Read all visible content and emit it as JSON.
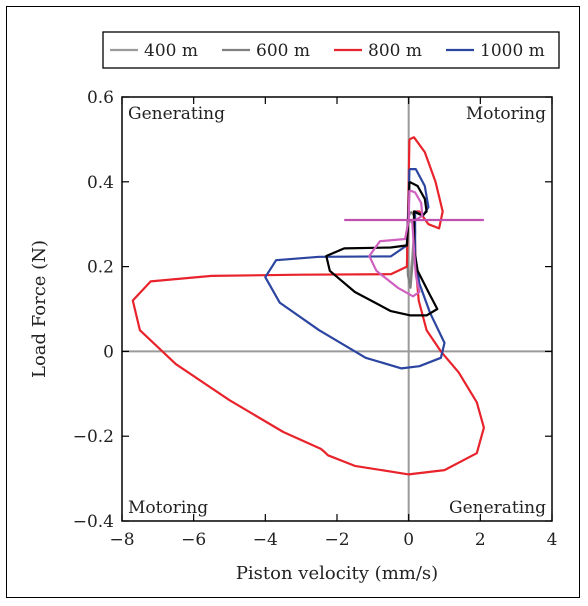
{
  "chart_data": {
    "type": "line",
    "xlabel": "Piston velocity (mm/s)",
    "ylabel": "Load Force (N)",
    "xlim": [
      -8,
      4
    ],
    "ylim": [
      -0.4,
      0.6
    ],
    "x_ticks": [
      -8,
      -6,
      -4,
      -2,
      0,
      2,
      4
    ],
    "y_ticks": [
      -0.4,
      -0.2,
      0,
      0.2,
      0.4,
      0.6
    ],
    "x_tick_labels": [
      "−8",
      "−6",
      "−4",
      "−2",
      "0",
      "2",
      "4"
    ],
    "y_tick_labels": [
      "−0.4",
      "−0.2",
      "0",
      "0.2",
      "0.4",
      "0.6"
    ],
    "grid": false,
    "legend_position": "top",
    "quadrant_labels": {
      "top_left": "Generating",
      "top_right": "Motoring",
      "bottom_left": "Motoring",
      "bottom_right": "Generating"
    },
    "series": [
      {
        "name": "400 m",
        "color": "#9a9a9a",
        "points": [
          [
            0.05,
            0.31
          ],
          [
            0.12,
            0.3
          ],
          [
            0.14,
            0.27
          ],
          [
            0.1,
            0.22
          ],
          [
            0.04,
            0.17
          ],
          [
            -0.02,
            0.2
          ],
          [
            -0.04,
            0.26
          ],
          [
            -0.02,
            0.3
          ],
          [
            0.05,
            0.31
          ]
        ]
      },
      {
        "name": "600 m",
        "color": "#808080",
        "points": [
          [
            0.05,
            0.33
          ],
          [
            0.16,
            0.32
          ],
          [
            0.18,
            0.28
          ],
          [
            0.12,
            0.22
          ],
          [
            0.05,
            0.15
          ],
          [
            -0.02,
            0.18
          ],
          [
            -0.05,
            0.25
          ],
          [
            -0.03,
            0.31
          ],
          [
            0.05,
            0.33
          ]
        ]
      },
      {
        "name": "800 m",
        "color": "#e8232b",
        "points": [
          [
            0.02,
            0.5
          ],
          [
            0.15,
            0.505
          ],
          [
            0.45,
            0.47
          ],
          [
            0.75,
            0.4
          ],
          [
            0.95,
            0.33
          ],
          [
            0.85,
            0.29
          ],
          [
            0.55,
            0.3
          ],
          [
            0.3,
            0.33
          ],
          [
            0.15,
            0.33
          ],
          [
            0.2,
            0.2
          ],
          [
            0.28,
            0.12
          ],
          [
            0.5,
            0.05
          ],
          [
            0.9,
            0.0
          ],
          [
            1.4,
            -0.05
          ],
          [
            1.9,
            -0.12
          ],
          [
            2.1,
            -0.18
          ],
          [
            1.9,
            -0.24
          ],
          [
            1.0,
            -0.28
          ],
          [
            0.0,
            -0.29
          ],
          [
            -1.5,
            -0.27
          ],
          [
            -2.25,
            -0.245
          ],
          [
            -2.35,
            -0.237
          ],
          [
            -2.45,
            -0.23
          ],
          [
            -3.5,
            -0.19
          ],
          [
            -5.0,
            -0.115
          ],
          [
            -6.5,
            -0.03
          ],
          [
            -7.5,
            0.05
          ],
          [
            -7.7,
            0.12
          ],
          [
            -7.2,
            0.165
          ],
          [
            -5.5,
            0.178
          ],
          [
            -3.0,
            0.181
          ],
          [
            -0.5,
            0.182
          ],
          [
            -0.05,
            0.2
          ],
          [
            0.0,
            0.4
          ],
          [
            0.02,
            0.5
          ]
        ]
      },
      {
        "name": "1000 m",
        "color": "#2b45a0",
        "points": [
          [
            0.02,
            0.43
          ],
          [
            0.2,
            0.43
          ],
          [
            0.45,
            0.39
          ],
          [
            0.55,
            0.34
          ],
          [
            0.4,
            0.32
          ],
          [
            0.18,
            0.33
          ],
          [
            0.18,
            0.23
          ],
          [
            0.3,
            0.16
          ],
          [
            0.6,
            0.09
          ],
          [
            1.0,
            0.02
          ],
          [
            0.9,
            -0.015
          ],
          [
            0.3,
            -0.035
          ],
          [
            -0.2,
            -0.04
          ],
          [
            -1.2,
            -0.015
          ],
          [
            -2.5,
            0.05
          ],
          [
            -3.6,
            0.115
          ],
          [
            -4.0,
            0.175
          ],
          [
            -3.7,
            0.215
          ],
          [
            -2.5,
            0.223
          ],
          [
            -0.5,
            0.224
          ],
          [
            -0.05,
            0.25
          ],
          [
            0.0,
            0.35
          ],
          [
            0.02,
            0.43
          ]
        ]
      },
      {
        "name": "",
        "color": "#000000",
        "points": [
          [
            0.02,
            0.4
          ],
          [
            0.25,
            0.39
          ],
          [
            0.45,
            0.36
          ],
          [
            0.5,
            0.33
          ],
          [
            0.38,
            0.32
          ],
          [
            0.15,
            0.33
          ],
          [
            0.15,
            0.24
          ],
          [
            0.25,
            0.19
          ],
          [
            0.55,
            0.14
          ],
          [
            0.8,
            0.1
          ],
          [
            0.5,
            0.085
          ],
          [
            0.05,
            0.085
          ],
          [
            -0.5,
            0.095
          ],
          [
            -1.5,
            0.14
          ],
          [
            -2.2,
            0.19
          ],
          [
            -2.3,
            0.225
          ],
          [
            -1.8,
            0.243
          ],
          [
            -0.5,
            0.245
          ],
          [
            -0.05,
            0.25
          ],
          [
            0.0,
            0.33
          ],
          [
            0.02,
            0.4
          ]
        ]
      },
      {
        "name": "",
        "color": "#d060c0",
        "points": [
          [
            0.02,
            0.38
          ],
          [
            0.18,
            0.375
          ],
          [
            0.35,
            0.35
          ],
          [
            0.38,
            0.32
          ],
          [
            0.2,
            0.31
          ],
          [
            0.1,
            0.31
          ],
          [
            0.15,
            0.24
          ],
          [
            0.2,
            0.18
          ],
          [
            0.3,
            0.14
          ],
          [
            0.12,
            0.13
          ],
          [
            -0.3,
            0.15
          ],
          [
            -0.9,
            0.19
          ],
          [
            -1.1,
            0.225
          ],
          [
            -0.8,
            0.26
          ],
          [
            -0.1,
            0.265
          ],
          [
            0.0,
            0.31
          ],
          [
            0.02,
            0.38
          ]
        ]
      },
      {
        "name": "",
        "color": "#c050b0",
        "points": [
          [
            -1.8,
            0.31
          ],
          [
            2.1,
            0.31
          ]
        ]
      }
    ]
  }
}
